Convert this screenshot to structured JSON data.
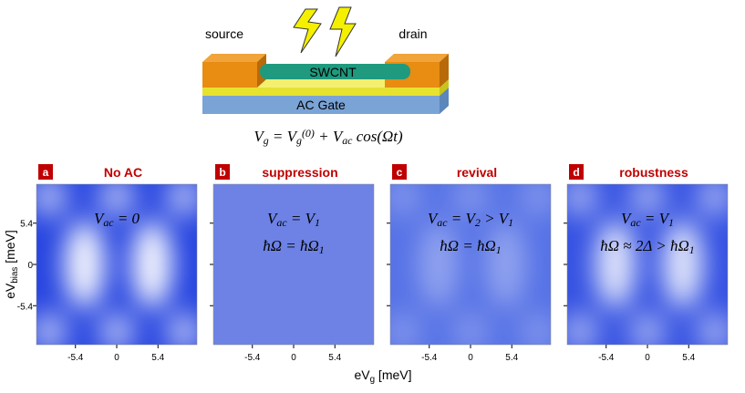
{
  "device": {
    "source": "source",
    "drain": "drain",
    "tube": "SWCNT",
    "gate": "AC Gate"
  },
  "equation": [
    {
      "text": "V"
    },
    {
      "sub": "g"
    },
    {
      "text": " = V"
    },
    {
      "sub": "g"
    },
    {
      "sup": "(0)"
    },
    {
      "text": " + V"
    },
    {
      "sub": "ac"
    },
    {
      "text": " cos(Ωt)"
    }
  ],
  "panels": [
    {
      "letter": "a",
      "title": "No AC",
      "lines": [
        [
          {
            "text": "V"
          },
          {
            "sub": "ac"
          },
          {
            "text": " = 0"
          }
        ]
      ]
    },
    {
      "letter": "b",
      "title": "suppression",
      "lines": [
        [
          {
            "text": "V"
          },
          {
            "sub": "ac"
          },
          {
            "text": " = V"
          },
          {
            "sub": "1"
          }
        ],
        [
          {
            "text": "ħΩ = ħΩ"
          },
          {
            "sub": "1"
          }
        ]
      ]
    },
    {
      "letter": "c",
      "title": "revival",
      "lines": [
        [
          {
            "text": "V"
          },
          {
            "sub": "ac"
          },
          {
            "text": " = V"
          },
          {
            "sub": "2"
          },
          {
            "text": " > V"
          },
          {
            "sub": "1"
          }
        ],
        [
          {
            "text": "ħΩ = ħΩ"
          },
          {
            "sub": "1"
          }
        ]
      ]
    },
    {
      "letter": "d",
      "title": "robustness",
      "lines": [
        [
          {
            "text": "V"
          },
          {
            "sub": "ac"
          },
          {
            "text": " = V"
          },
          {
            "sub": "1"
          }
        ],
        [
          {
            "text": "ħΩ ≈ 2Δ > ħΩ"
          },
          {
            "sub": "1"
          }
        ]
      ]
    }
  ],
  "xticks": [
    -5.4,
    0,
    5.4
  ],
  "yticks": [
    5.4,
    0,
    -5.4
  ],
  "xlabel": [
    {
      "text": "eV"
    },
    {
      "sub": "g"
    },
    {
      "text": " [meV]"
    }
  ],
  "ylabel": [
    {
      "text": "eV"
    },
    {
      "sub": "bias"
    },
    {
      "text": " [meV]"
    }
  ]
}
